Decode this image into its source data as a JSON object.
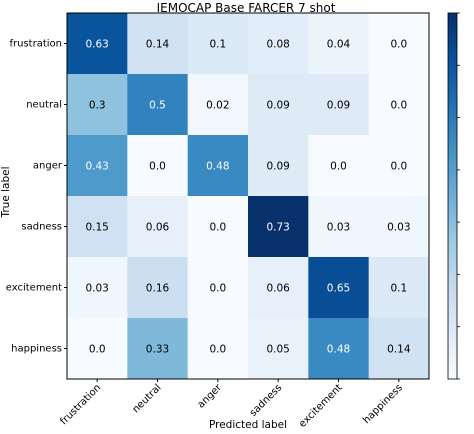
{
  "chart_data": {
    "type": "heatmap",
    "title": "IEMOCAP Base FARCER 7 shot",
    "xlabel": "Predicted label",
    "ylabel": "True label",
    "rows": [
      "frustration",
      "neutral",
      "anger",
      "sadness",
      "excitement",
      "happiness"
    ],
    "columns": [
      "frustration",
      "neutral",
      "anger",
      "sadness",
      "excitement",
      "happiness"
    ],
    "values": [
      [
        0.63,
        0.14,
        0.1,
        0.08,
        0.04,
        0.0
      ],
      [
        0.3,
        0.5,
        0.02,
        0.09,
        0.09,
        0.0
      ],
      [
        0.43,
        0.0,
        0.48,
        0.09,
        0.0,
        0.0
      ],
      [
        0.15,
        0.06,
        0.0,
        0.73,
        0.03,
        0.03
      ],
      [
        0.03,
        0.16,
        0.0,
        0.06,
        0.65,
        0.1
      ],
      [
        0.0,
        0.33,
        0.0,
        0.05,
        0.48,
        0.14
      ]
    ],
    "value_labels": [
      [
        "0.63",
        "0.14",
        "0.1",
        "0.08",
        "0.04",
        "0.0"
      ],
      [
        "0.3",
        "0.5",
        "0.02",
        "0.09",
        "0.09",
        "0.0"
      ],
      [
        "0.43",
        "0.0",
        "0.48",
        "0.09",
        "0.0",
        "0.0"
      ],
      [
        "0.15",
        "0.06",
        "0.0",
        "0.73",
        "0.03",
        "0.03"
      ],
      [
        "0.03",
        "0.16",
        "0.0",
        "0.06",
        "0.65",
        "0.1"
      ],
      [
        "0.0",
        "0.33",
        "0.0",
        "0.05",
        "0.48",
        "0.14"
      ]
    ],
    "colormap": "Blues",
    "color_range": [
      0,
      0.73
    ],
    "colorbar": true,
    "colors": {
      "low": "#f7fbff",
      "high": "#08306b",
      "text_dark": "#000000",
      "text_light": "#ffffff"
    }
  }
}
